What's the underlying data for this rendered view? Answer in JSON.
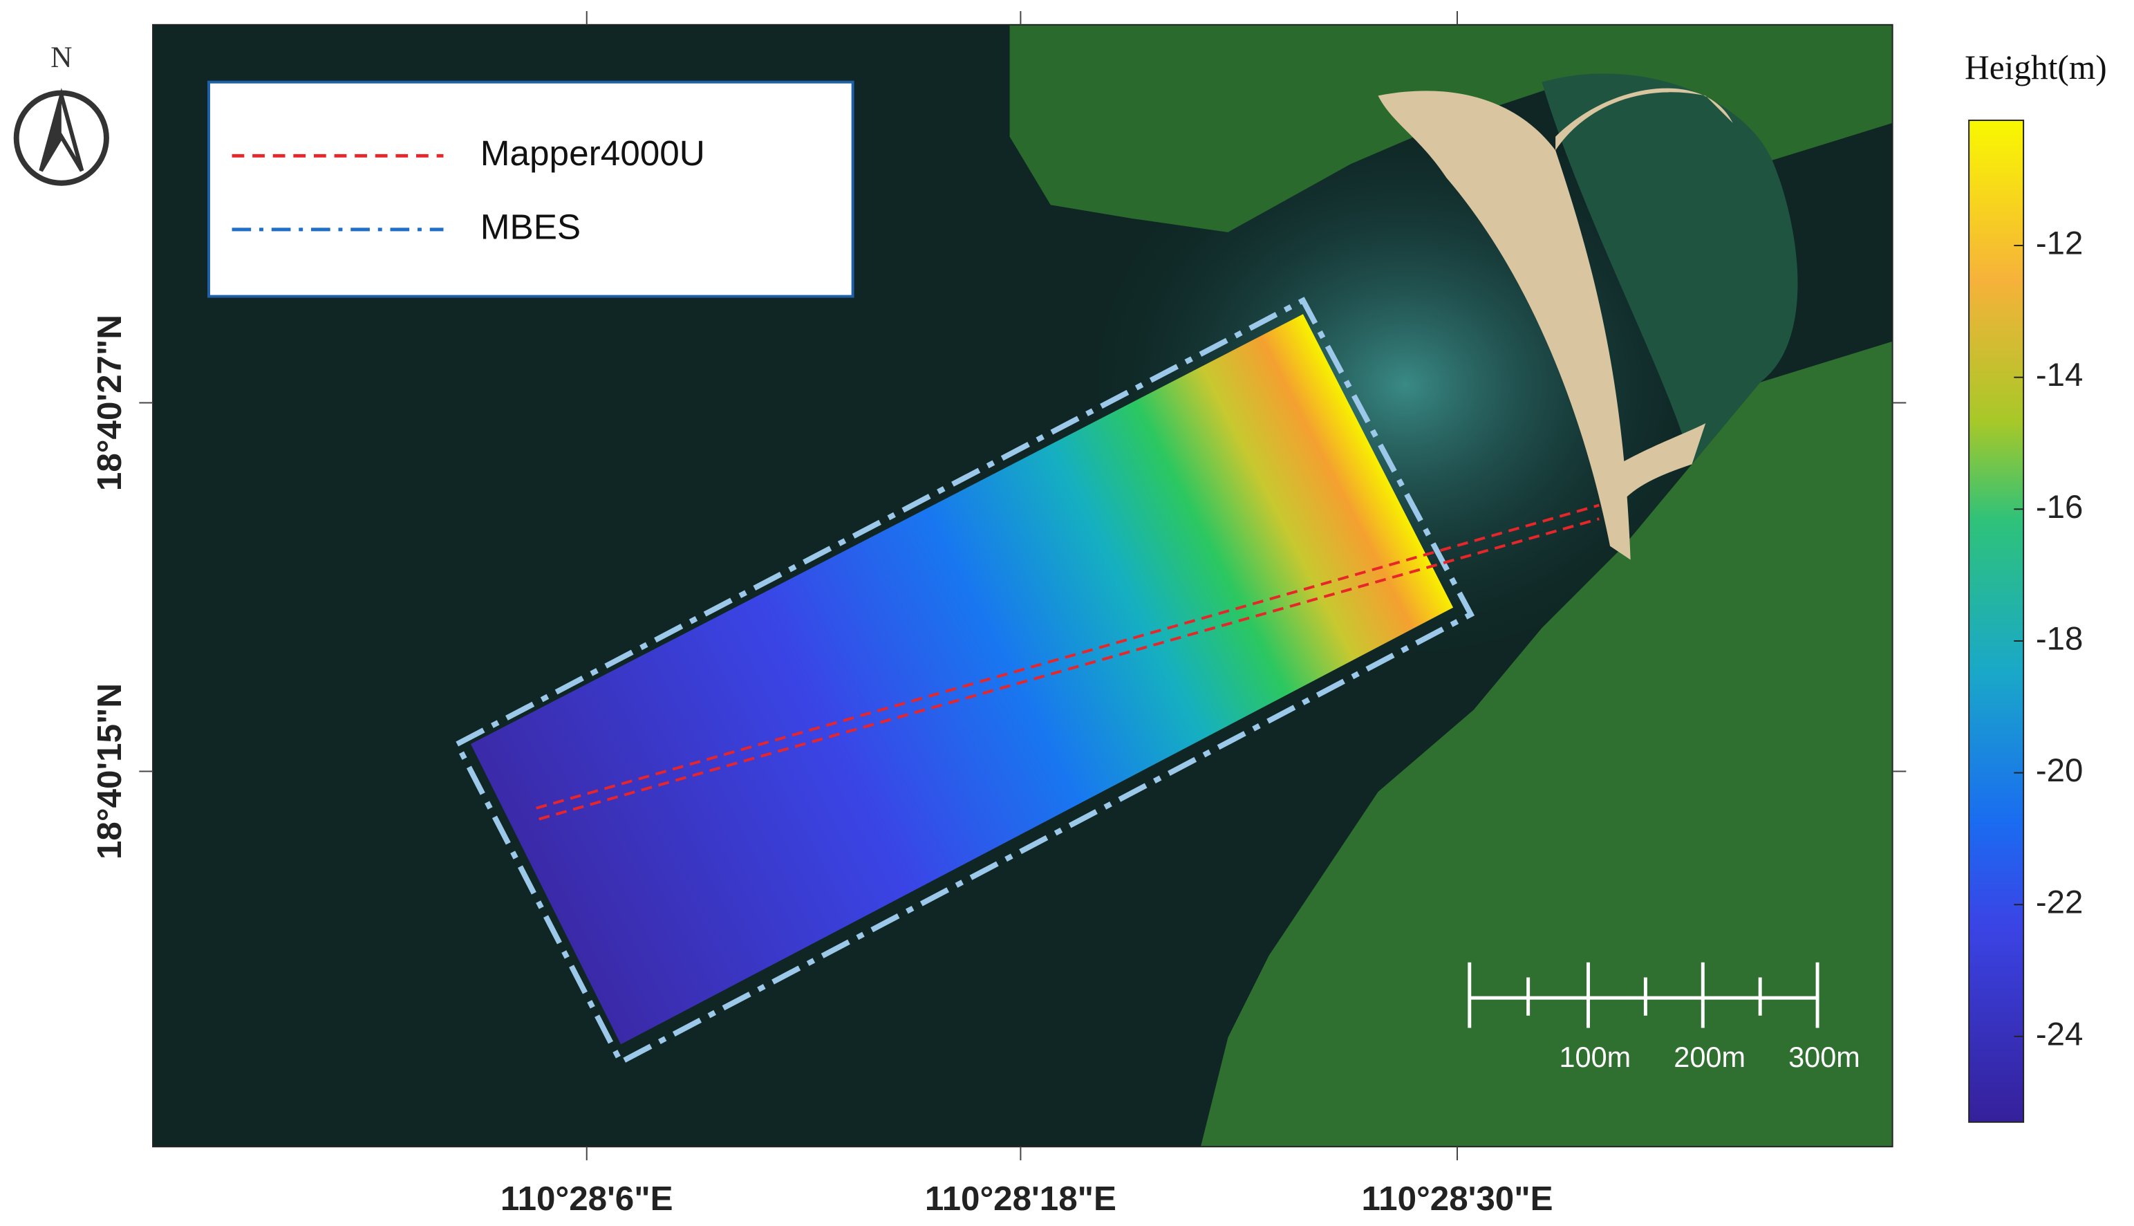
{
  "north_label": "N",
  "legend": {
    "entries": [
      {
        "name": "Mapper4000U",
        "color": "#e8262a",
        "style": "dashed"
      },
      {
        "name": "MBES",
        "color": "#1f6fc6",
        "style": "dashdot"
      }
    ]
  },
  "colorbar": {
    "title": "Height(m)",
    "lim": [
      -25.3,
      -10.1
    ],
    "ticks": [
      -12,
      -14,
      -16,
      -18,
      -20,
      -22,
      -24
    ]
  },
  "axes": {
    "x_labels": [
      "110°28'6\"E",
      "110°28'18\"E",
      "110°28'30\"E"
    ],
    "y_labels": [
      "18°40'27\"N",
      "18°40'15\"N"
    ]
  },
  "scale_bar": {
    "labels": [
      "100m",
      "200m",
      "300m"
    ]
  }
}
